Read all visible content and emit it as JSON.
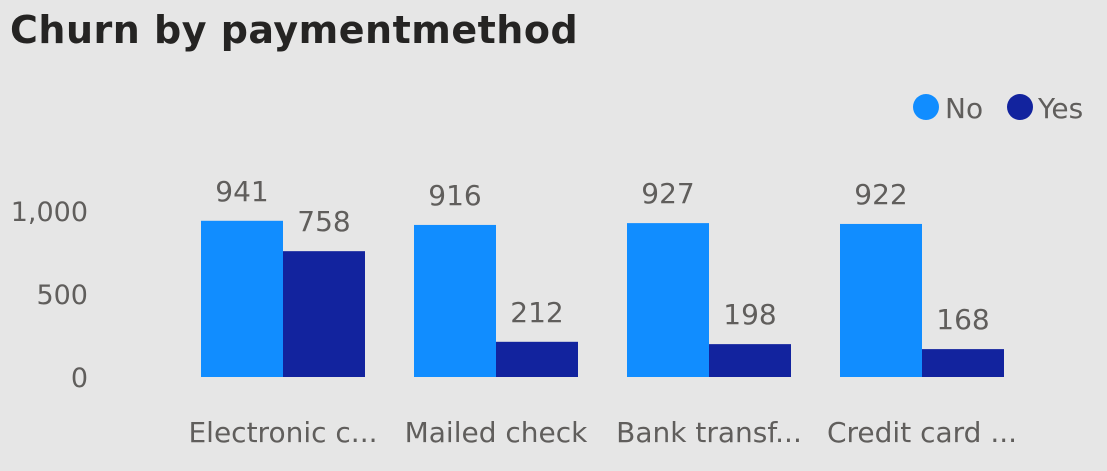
{
  "title": "Churn by paymentmethod",
  "chart_data": {
    "type": "bar",
    "title": "Churn by paymentmethod",
    "categories": [
      "Electronic c...",
      "Mailed check",
      "Bank transf...",
      "Credit card ..."
    ],
    "series": [
      {
        "name": "No",
        "color": "#118dff",
        "values": [
          941,
          916,
          927,
          922
        ]
      },
      {
        "name": "Yes",
        "color": "#12239e",
        "values": [
          758,
          212,
          198,
          168
        ]
      }
    ],
    "ylim": [
      0,
      1000
    ],
    "yticks": [
      {
        "value": 0,
        "label": "0"
      },
      {
        "value": 500,
        "label": "500"
      },
      {
        "value": 1000,
        "label": "1,000"
      }
    ],
    "xlabel": "",
    "ylabel": "",
    "legend_position": "top-right",
    "grid": false,
    "data_labels": true
  }
}
